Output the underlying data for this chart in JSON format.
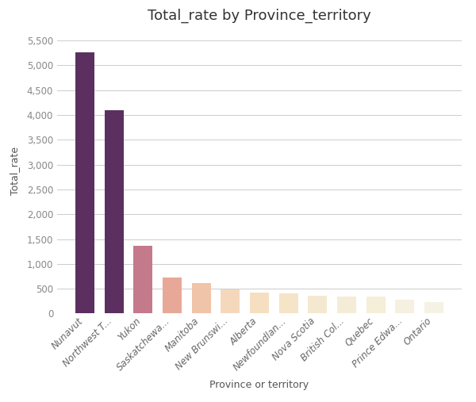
{
  "title": "Total_rate by Province_territory",
  "xlabel": "Province or territory",
  "ylabel": "Total_rate",
  "categories": [
    "Nunavut",
    "Northwest T...",
    "Yukon",
    "Saskatchewa...",
    "Manitoba",
    "New Brunswi...",
    "Alberta",
    "Newfoundlan...",
    "Nova Scotia",
    "British Col...",
    "Quebec",
    "Prince Edwa...",
    "Ontario"
  ],
  "values": [
    5270,
    4100,
    1370,
    730,
    620,
    480,
    430,
    400,
    365,
    345,
    335,
    275,
    235
  ],
  "bar_colors": [
    "#5b3060",
    "#5b3060",
    "#c47a8a",
    "#e8a898",
    "#f0c4a8",
    "#f5d8bc",
    "#f5dfc0",
    "#f5e4c8",
    "#f5e8d0",
    "#f5ecd8",
    "#f5eed8",
    "#f5f0e0",
    "#f5f2e5"
  ],
  "ylim": [
    0,
    5750
  ],
  "yticks": [
    0,
    500,
    1000,
    1500,
    2000,
    2500,
    3000,
    3500,
    4000,
    4500,
    5000,
    5500
  ],
  "background_color": "#ffffff",
  "grid_color": "#cccccc",
  "title_fontsize": 13,
  "label_fontsize": 9,
  "tick_fontsize": 8.5
}
